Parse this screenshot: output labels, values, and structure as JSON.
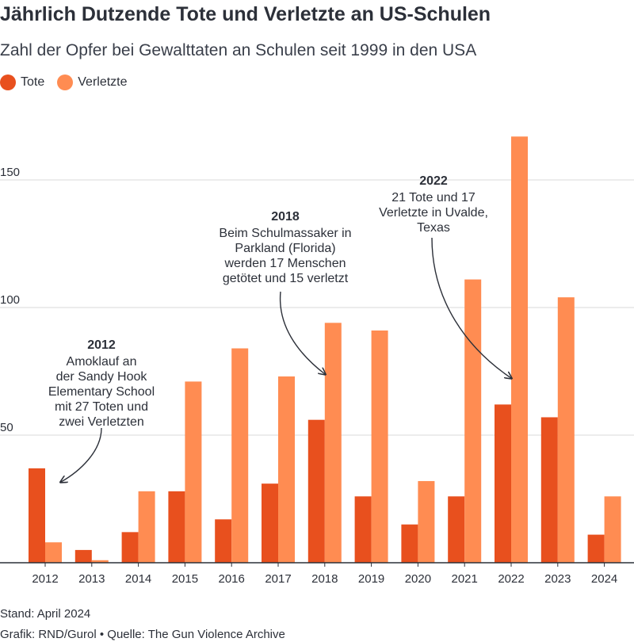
{
  "header": {
    "title": "Jährlich Dutzende Tote und Verletzte an US-Schulen",
    "subtitle": "Zahl der Opfer bei Gewalttaten an Schulen seit 1999 in den USA"
  },
  "footer": {
    "stand": "Stand: April 2024",
    "credit": "Grafik: RND/Gurol • Quelle: The Gun Violence Archive"
  },
  "colors": {
    "tote": "#e8501e",
    "verletzte": "#ff8c52",
    "grid": "#d9d9d9",
    "axis": "#2c3039"
  },
  "chart_data": {
    "type": "bar",
    "categories": [
      "2012",
      "2013",
      "2014",
      "2015",
      "2016",
      "2017",
      "2018",
      "2019",
      "2020",
      "2021",
      "2022",
      "2023",
      "2024"
    ],
    "series": [
      {
        "name": "Tote",
        "values": [
          37,
          5,
          12,
          28,
          17,
          31,
          56,
          26,
          15,
          26,
          62,
          57,
          11
        ]
      },
      {
        "name": "Verletzte",
        "values": [
          8,
          1,
          28,
          71,
          84,
          73,
          94,
          91,
          32,
          111,
          167,
          104,
          26
        ]
      }
    ],
    "yticks": [
      50,
      100,
      150
    ],
    "ylim": [
      0,
      175
    ],
    "grid": true,
    "legend": "top-left",
    "annotations": [
      {
        "year": "2012",
        "lines": [
          "Amoklauf an",
          "der Sandy Hook",
          "Elementary School",
          "mit 27 Toten und",
          "zwei Verletzten"
        ]
      },
      {
        "year": "2018",
        "lines": [
          "Beim Schulmassaker in",
          "Parkland (Florida)",
          "werden 17 Menschen",
          "getötet und 15 verletzt"
        ]
      },
      {
        "year": "2022",
        "lines": [
          "21 Tote und 17",
          "Verletzte in Uvalde,",
          "Texas"
        ]
      }
    ]
  }
}
